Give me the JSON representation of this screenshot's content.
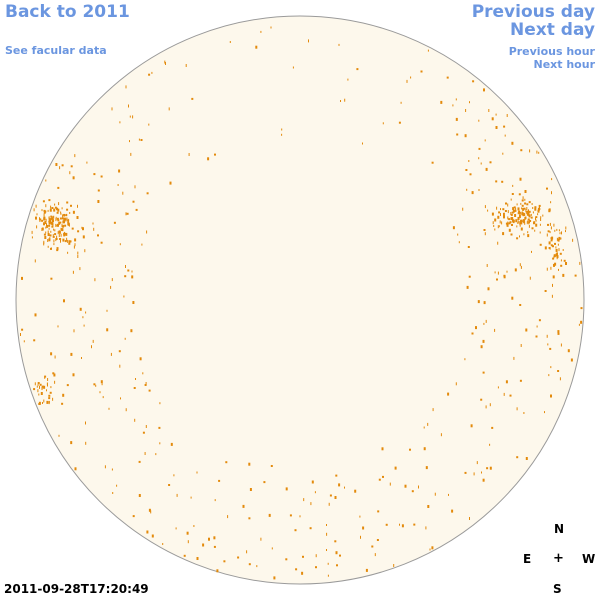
{
  "nav": {
    "back_label": "Back to 2011",
    "facular_label": "See facular data",
    "previous_day_label": "Previous day",
    "next_day_label": "Next day",
    "previous_hour_label": "Previous hour",
    "next_hour_label": "Next hour"
  },
  "compass": {
    "north": "N",
    "east": "E",
    "center": "+",
    "west": "W",
    "south": "S"
  },
  "timestamp": "2011-09-28T17:20:49",
  "colors": {
    "link": "#6b96e0",
    "disk_fill": "#fdf8ec",
    "disk_outline": "#9a9a9a",
    "marks": "#e38a0c"
  },
  "icons": {
    "sun_disk": "solar-disk-image"
  }
}
